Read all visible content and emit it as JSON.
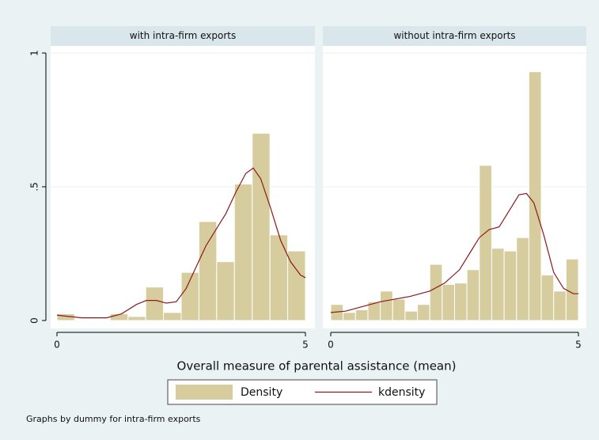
{
  "chart_data": [
    {
      "type": "histogram",
      "title": "with intra-firm exports",
      "bins": [
        0,
        0.357,
        0.714,
        1.071,
        1.429,
        1.786,
        2.143,
        2.5,
        2.857,
        3.214,
        3.571,
        3.929,
        4.286,
        4.643,
        5
      ],
      "series": [
        {
          "name": "Density",
          "color": "#d6cc9e",
          "values": [
            0.025,
            0,
            0,
            0.025,
            0.015,
            0.125,
            0.03,
            0.18,
            0.37,
            0.22,
            0.51,
            0.7,
            0.32,
            0.26
          ]
        },
        {
          "name": "kdensity",
          "color": "#8b1a1a",
          "x": [
            0,
            0.5,
            1,
            1.3,
            1.6,
            1.8,
            2,
            2.2,
            2.4,
            2.6,
            2.8,
            3,
            3.2,
            3.4,
            3.6,
            3.8,
            3.95,
            4.1,
            4.3,
            4.5,
            4.7,
            4.9,
            5
          ],
          "values": [
            0.02,
            0.01,
            0.01,
            0.025,
            0.06,
            0.075,
            0.075,
            0.065,
            0.07,
            0.12,
            0.2,
            0.28,
            0.34,
            0.4,
            0.48,
            0.55,
            0.57,
            0.53,
            0.42,
            0.3,
            0.22,
            0.17,
            0.16
          ]
        }
      ],
      "xlim": [
        0,
        5
      ],
      "xticks": [
        0,
        5
      ],
      "ylim": [
        0,
        1
      ],
      "yticks": [
        0,
        {
          "value": 0.5,
          "label": ".5"
        },
        1
      ],
      "grid": true
    },
    {
      "type": "histogram",
      "title": "without intra-firm exports",
      "bins": [
        0,
        0.25,
        0.5,
        0.75,
        1,
        1.25,
        1.5,
        1.75,
        2,
        2.25,
        2.5,
        2.75,
        3,
        3.25,
        3.5,
        3.75,
        4,
        4.25,
        4.5,
        4.75,
        5
      ],
      "series": [
        {
          "name": "Density",
          "color": "#d6cc9e",
          "values": [
            0.06,
            0.03,
            0.04,
            0.07,
            0.11,
            0.08,
            0.035,
            0.06,
            0.21,
            0.135,
            0.14,
            0.19,
            0.58,
            0.27,
            0.26,
            0.31,
            0.93,
            0.17,
            0.11,
            0.23
          ]
        },
        {
          "name": "kdensity",
          "color": "#8b1a1a",
          "x": [
            0,
            0.3,
            0.6,
            1,
            1.3,
            1.6,
            2,
            2.3,
            2.6,
            2.8,
            3,
            3.2,
            3.4,
            3.6,
            3.8,
            3.95,
            4.1,
            4.3,
            4.5,
            4.7,
            4.9,
            5
          ],
          "values": [
            0.03,
            0.035,
            0.05,
            0.07,
            0.08,
            0.09,
            0.11,
            0.14,
            0.19,
            0.25,
            0.31,
            0.34,
            0.35,
            0.41,
            0.47,
            0.475,
            0.44,
            0.32,
            0.18,
            0.12,
            0.1,
            0.1
          ]
        }
      ],
      "xlim": [
        0,
        5
      ],
      "xticks": [
        0,
        5
      ],
      "ylim": [
        0,
        1
      ],
      "yticks": [
        0,
        {
          "value": 0.5,
          "label": ".5"
        },
        1
      ],
      "grid": true
    }
  ],
  "xlabel": "Overall measure of parental assistance (mean)",
  "note": "Graphs by dummy for intra-firm exports"
}
